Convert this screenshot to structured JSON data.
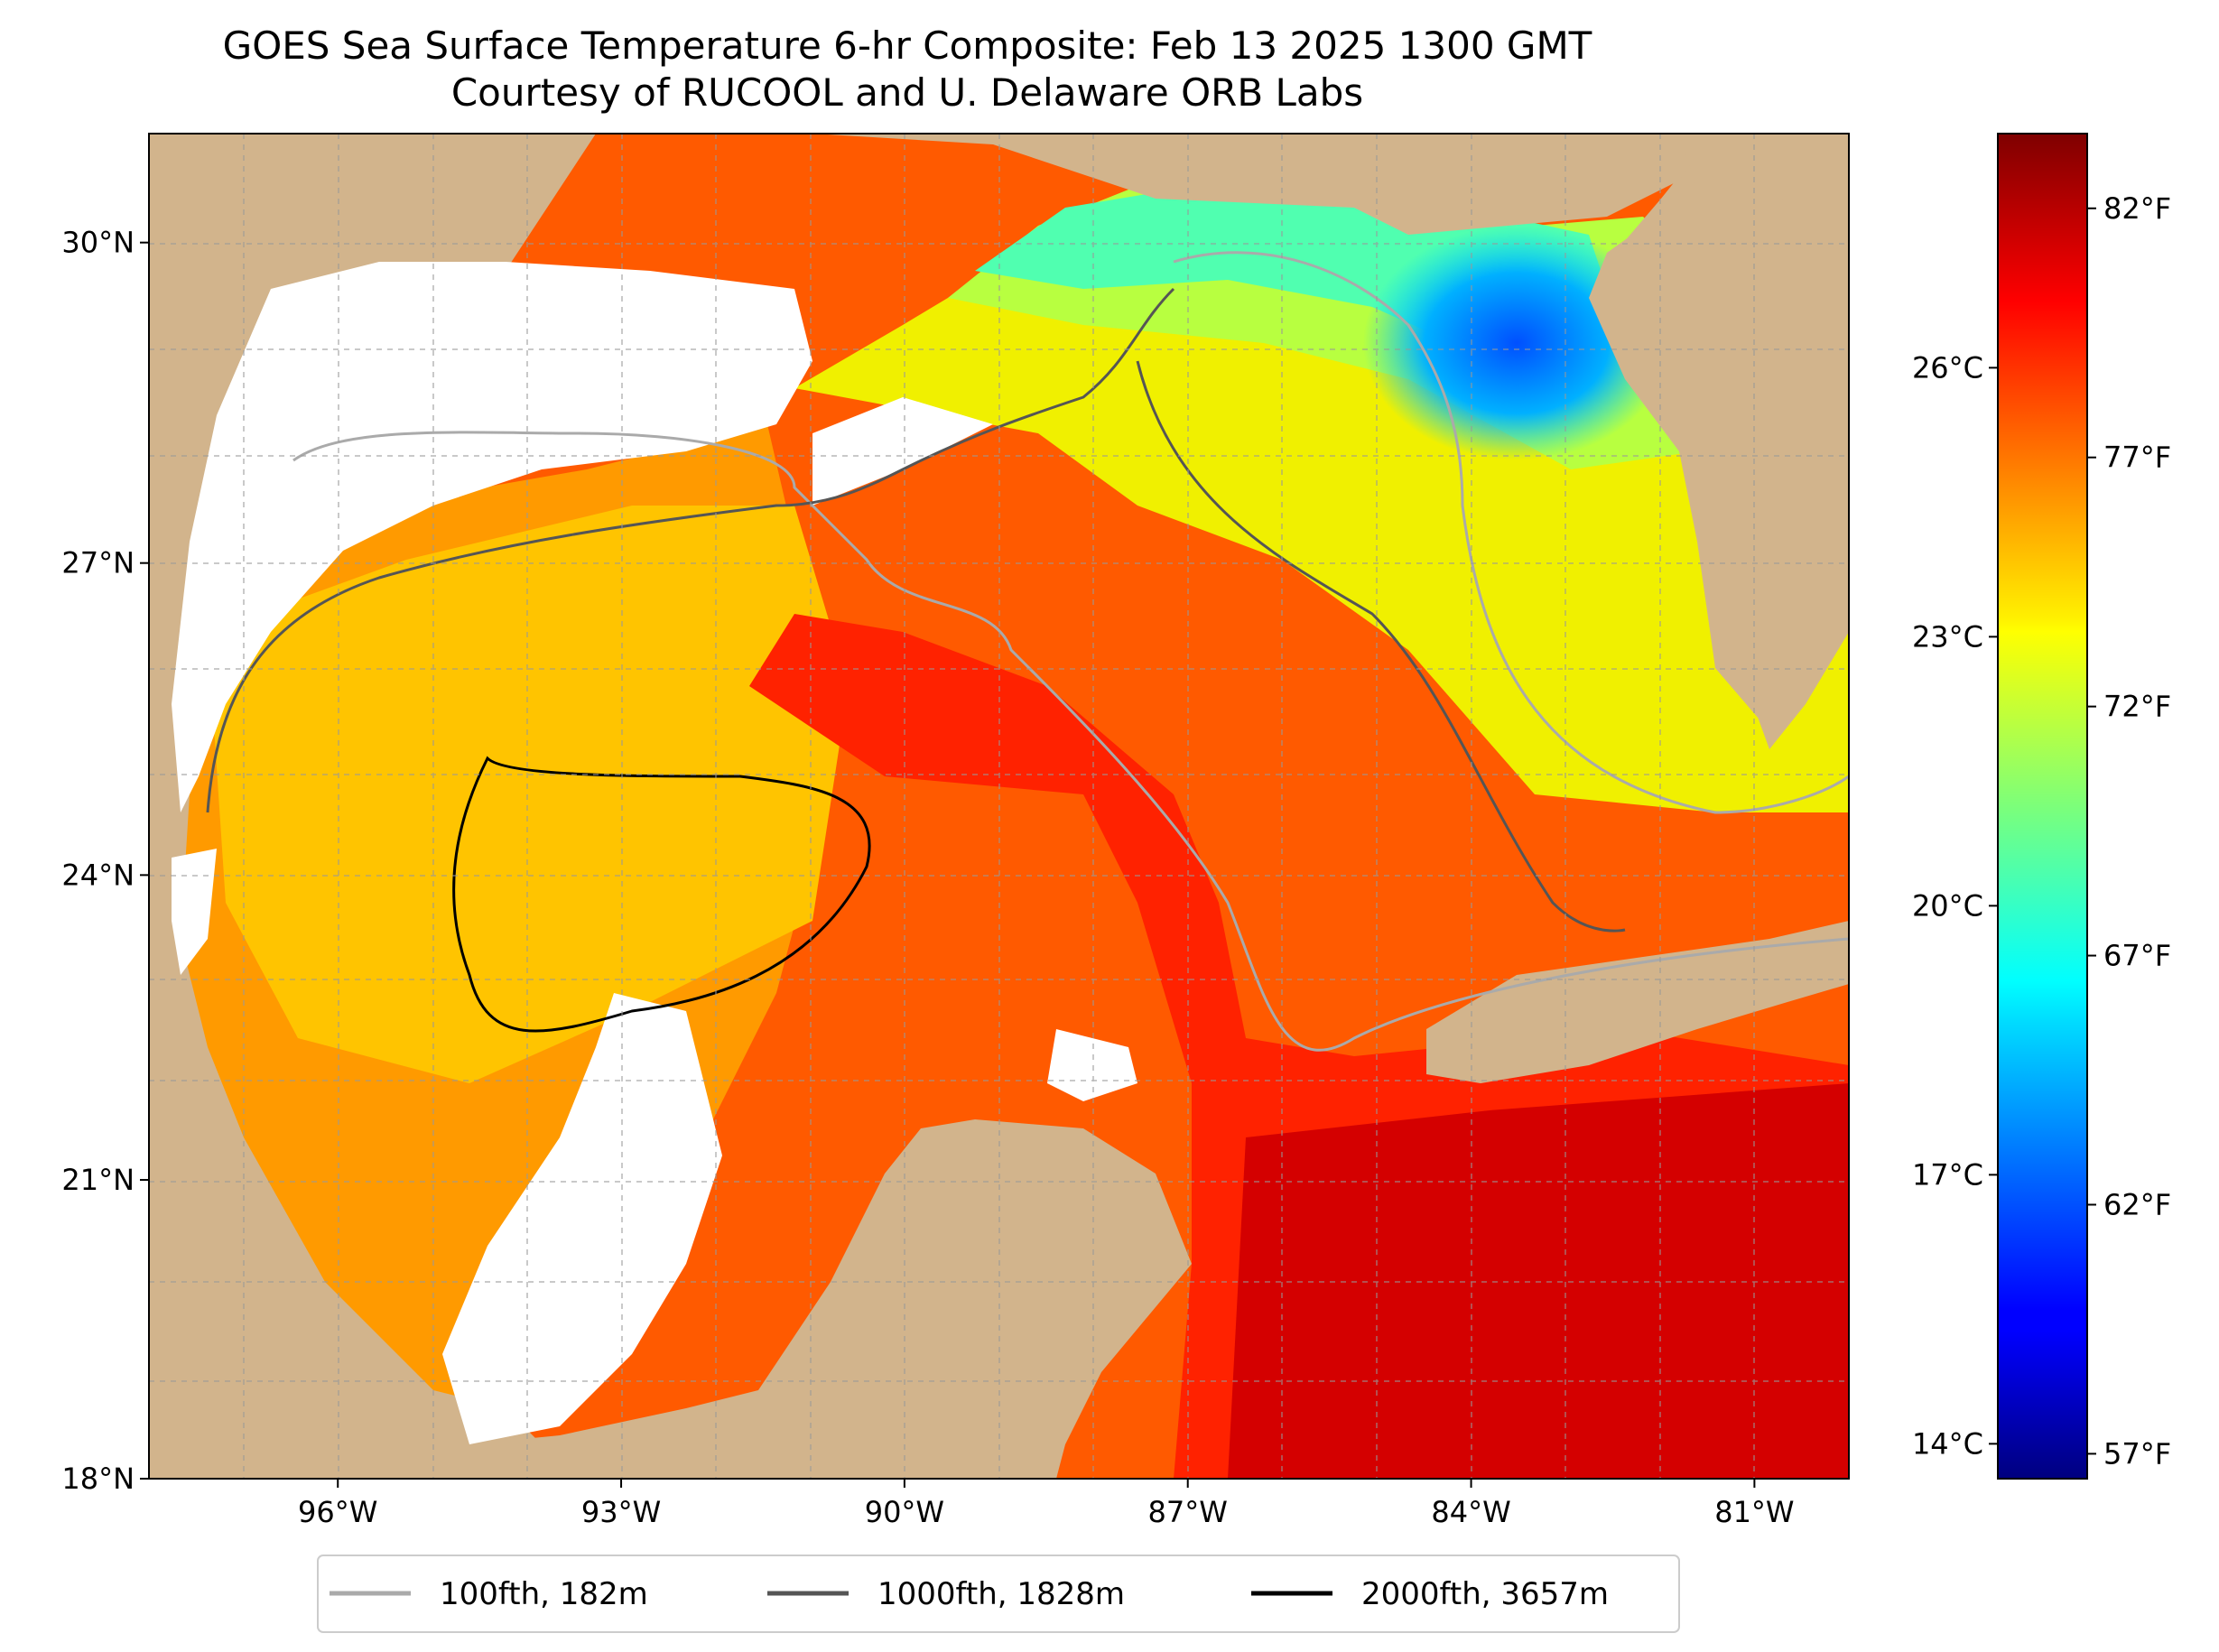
{
  "title": "GOES Sea Surface Temperature 6-hr Composite: Feb 13 2025 1300 GMT",
  "subtitle": "Courtesy of RUCOOL and U. Delaware ORB Labs",
  "map": {
    "extent": {
      "lon": [
        -98.0,
        -80.0
      ],
      "lat": [
        18.0,
        31.0
      ]
    },
    "lat_ticks": [
      {
        "value": 30,
        "label": "30°N"
      },
      {
        "value": 27,
        "label": "27°N"
      },
      {
        "value": 24,
        "label": "24°N"
      },
      {
        "value": 21,
        "label": "21°N"
      },
      {
        "value": 18,
        "label": "18°N"
      }
    ],
    "lon_ticks": [
      {
        "value": -96,
        "label": "96°W"
      },
      {
        "value": -93,
        "label": "93°W"
      },
      {
        "value": -90,
        "label": "90°W"
      },
      {
        "value": -87,
        "label": "87°W"
      },
      {
        "value": -84,
        "label": "84°W"
      },
      {
        "value": -81,
        "label": "81°W"
      }
    ],
    "land_color": "#d2b48c",
    "cloud_color": "#ffffff",
    "grid": true
  },
  "colorbar": {
    "colormap": "jet",
    "range_f": [
      56.5,
      83.5
    ],
    "celsius_ticks": [
      {
        "value": 26,
        "label": "26°C"
      },
      {
        "value": 23,
        "label": "23°C"
      },
      {
        "value": 20,
        "label": "20°C"
      },
      {
        "value": 17,
        "label": "17°C"
      },
      {
        "value": 14,
        "label": "14°C"
      }
    ],
    "fahrenheit_ticks": [
      {
        "value": 82,
        "label": "82°F"
      },
      {
        "value": 77,
        "label": "77°F"
      },
      {
        "value": 72,
        "label": "72°F"
      },
      {
        "value": 67,
        "label": "67°F"
      },
      {
        "value": 62,
        "label": "62°F"
      },
      {
        "value": 57,
        "label": "57°F"
      }
    ]
  },
  "legend": [
    {
      "label": "100fth, 182m",
      "color": "#aaaaaa"
    },
    {
      "label": "1000fth, 1828m",
      "color": "#555555"
    },
    {
      "label": "2000fth, 3657m",
      "color": "#000000"
    }
  ]
}
